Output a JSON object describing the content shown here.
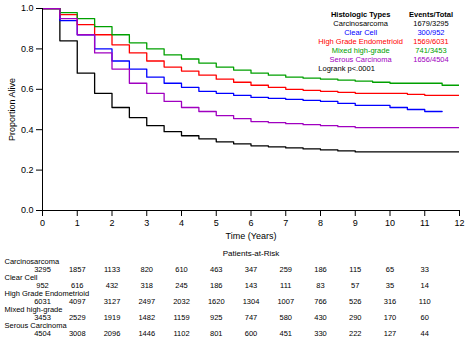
{
  "chart_data": {
    "type": "line",
    "x_label": "Time (Years)",
    "y_label": "Proportion Alive",
    "xlim": [
      0,
      12
    ],
    "xticks": [
      0,
      1,
      2,
      3,
      4,
      5,
      6,
      7,
      8,
      9,
      10,
      11,
      12
    ],
    "ylim": [
      0,
      1
    ],
    "yticks": [
      {
        "value": 0,
        "label": "0.0"
      },
      0.2,
      0.4,
      0.6,
      0.8,
      {
        "value": 1,
        "label": "1.0"
      }
    ],
    "line_style": "step",
    "legend": "top-right",
    "legend_title": "Histologic Types",
    "legend_header": "Events/Total",
    "annotation": "Logrank p<.0001",
    "x": [
      0,
      0.5,
      1,
      1.5,
      2,
      2.5,
      3,
      3.5,
      4,
      4.5,
      5,
      5.5,
      6,
      6.5,
      7,
      7.5,
      8,
      8.5,
      9,
      9.5,
      10,
      10.5,
      11,
      11.5,
      12
    ],
    "series": [
      {
        "name": "Carcinosarcoma",
        "color": "#000000",
        "events_total": "1679/3295",
        "values": [
          1.0,
          0.84,
          0.68,
          0.58,
          0.51,
          0.46,
          0.42,
          0.39,
          0.37,
          0.355,
          0.34,
          0.33,
          0.32,
          0.315,
          0.31,
          0.305,
          0.3,
          0.295,
          0.29,
          0.29,
          0.29,
          0.29,
          0.29,
          0.29,
          0.29
        ],
        "at_risk": [
          3295,
          1857,
          1133,
          820,
          610,
          463,
          347,
          259,
          186,
          115,
          65,
          33
        ]
      },
      {
        "name": "Clear Cell",
        "color": "#0000ff",
        "events_total": "300/952",
        "values": [
          1.0,
          0.94,
          0.87,
          0.8,
          0.74,
          0.7,
          0.66,
          0.63,
          0.61,
          0.59,
          0.58,
          0.57,
          0.56,
          0.555,
          0.55,
          0.545,
          0.54,
          0.53,
          0.52,
          0.52,
          0.51,
          0.5,
          0.49,
          0.49,
          null
        ],
        "at_risk": [
          952,
          616,
          432,
          318,
          245,
          186,
          143,
          111,
          83,
          57,
          35,
          14
        ]
      },
      {
        "name": "High Grade Endometrioid",
        "color": "#ff0000",
        "events_total": "1569/6031",
        "values": [
          1.0,
          0.97,
          0.92,
          0.87,
          0.82,
          0.78,
          0.74,
          0.71,
          0.69,
          0.67,
          0.65,
          0.635,
          0.62,
          0.61,
          0.6,
          0.595,
          0.59,
          0.585,
          0.58,
          0.58,
          0.58,
          0.575,
          0.57,
          0.57,
          0.57
        ],
        "at_risk": [
          6031,
          4097,
          3127,
          2497,
          2032,
          1620,
          1304,
          1007,
          766,
          526,
          316,
          110
        ]
      },
      {
        "name": "Mixed high-grade",
        "color": "#00a000",
        "events_total": "741/3453",
        "values": [
          1.0,
          0.98,
          0.95,
          0.91,
          0.87,
          0.83,
          0.8,
          0.77,
          0.75,
          0.73,
          0.71,
          0.695,
          0.68,
          0.67,
          0.66,
          0.655,
          0.65,
          0.645,
          0.64,
          0.635,
          0.63,
          0.63,
          0.63,
          0.62,
          0.62
        ],
        "at_risk": [
          3453,
          2529,
          1919,
          1482,
          1159,
          925,
          747,
          580,
          430,
          290,
          170,
          60
        ]
      },
      {
        "name": "Serous Carcinoma",
        "color": "#a000c0",
        "events_total": "1656/4504",
        "values": [
          1.0,
          0.95,
          0.87,
          0.78,
          0.7,
          0.63,
          0.58,
          0.54,
          0.51,
          0.49,
          0.47,
          0.455,
          0.44,
          0.435,
          0.43,
          0.425,
          0.42,
          0.415,
          0.41,
          0.41,
          0.41,
          0.41,
          0.41,
          0.41,
          0.41
        ],
        "at_risk": [
          4504,
          3008,
          2096,
          1446,
          1102,
          801,
          600,
          451,
          330,
          222,
          127,
          44
        ]
      }
    ],
    "at_risk_table": {
      "title": "Patients-at-Risk",
      "x": [
        0,
        1,
        2,
        3,
        4,
        5,
        6,
        7,
        8,
        9,
        10,
        11
      ]
    }
  }
}
